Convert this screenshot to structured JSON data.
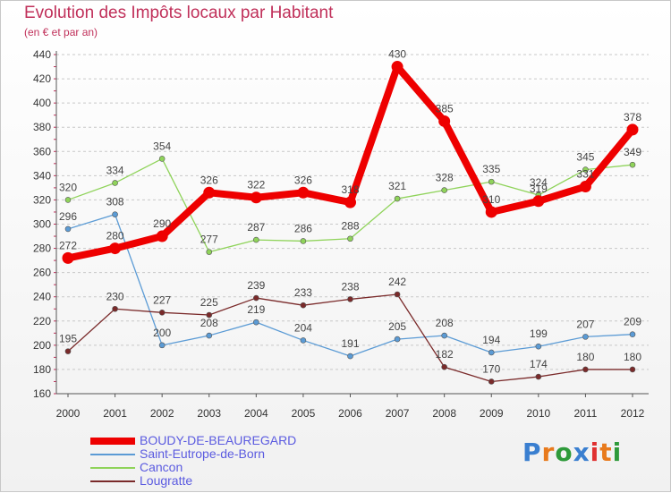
{
  "title": "Evolution des Impôts locaux par Habitant",
  "subtitle": "(en € et par an)",
  "brand": {
    "text": "Proxiti",
    "letter_colors": [
      "#3a7fd0",
      "#e87a1c",
      "#2e9a3a",
      "#3a7fd0",
      "#e03030",
      "#e87a1c",
      "#2e9a3a"
    ]
  },
  "chart_data": {
    "type": "line",
    "x": [
      2000,
      2001,
      2002,
      2003,
      2004,
      2005,
      2006,
      2007,
      2008,
      2009,
      2010,
      2011,
      2012
    ],
    "ylim": [
      160,
      440
    ],
    "yticks": [
      160,
      180,
      200,
      220,
      240,
      260,
      280,
      300,
      320,
      340,
      360,
      380,
      400,
      420,
      440
    ],
    "grid": "horizontal dashed",
    "legend_position": "bottom-left",
    "series": [
      {
        "name": "BOUDY-DE-BEAUREGARD",
        "color": "#ee0000",
        "weight": "thick",
        "values": [
          272,
          280,
          290,
          326,
          322,
          326,
          318,
          430,
          385,
          310,
          319,
          331,
          378
        ]
      },
      {
        "name": "Saint-Eutrope-de-Born",
        "color": "#5b9bd5",
        "weight": "thin",
        "values": [
          296,
          308,
          200,
          208,
          219,
          204,
          191,
          205,
          208,
          194,
          199,
          207,
          209
        ]
      },
      {
        "name": "Cancon",
        "color": "#8fd35a",
        "weight": "thin",
        "values": [
          320,
          334,
          354,
          277,
          287,
          286,
          288,
          321,
          328,
          335,
          324,
          345,
          349
        ]
      },
      {
        "name": "Lougratte",
        "color": "#7a2a2a",
        "weight": "thin",
        "values": [
          195,
          230,
          227,
          225,
          239,
          233,
          238,
          242,
          182,
          170,
          174,
          180,
          180
        ]
      }
    ]
  }
}
